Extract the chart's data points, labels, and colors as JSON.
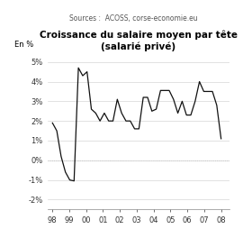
{
  "title_line1": "Croissance du salaire moyen par tête",
  "title_line2": "(salarié privé)",
  "subtitle": "Sources :  ACOSS, corse-economie.eu",
  "ylabel": "En %",
  "x_labels": [
    "98",
    "99",
    "00",
    "01",
    "02",
    "03",
    "04",
    "05",
    "06",
    "07",
    "08"
  ],
  "ylim": [
    -2.5,
    5.5
  ],
  "yticks": [
    -2,
    -1,
    0,
    1,
    2,
    3,
    4,
    5
  ],
  "ytick_labels": [
    "-2%",
    "-1%",
    "0%",
    "1%",
    "2%",
    "3%",
    "4%",
    "5%"
  ],
  "bg_color": "#ffffff",
  "line_color": "#111111",
  "grid_color": "#cccccc",
  "zero_line_color": "#aaaaaa",
  "values": [
    1.9,
    1.5,
    0.2,
    -0.6,
    -1.0,
    -1.05,
    4.7,
    4.3,
    4.5,
    2.6,
    2.4,
    2.0,
    2.4,
    2.0,
    2.0,
    3.1,
    2.4,
    2.0,
    2.0,
    1.6,
    1.6,
    3.2,
    3.2,
    2.5,
    2.6,
    3.55,
    3.55,
    3.55,
    3.1,
    2.4,
    3.0,
    2.3,
    2.3,
    3.0,
    4.0,
    3.5,
    3.5,
    3.5,
    2.8,
    1.1
  ],
  "n_points": 40,
  "title_fontsize": 7.5,
  "subtitle_fontsize": 5.5,
  "tick_fontsize": 6,
  "ylabel_fontsize": 6
}
